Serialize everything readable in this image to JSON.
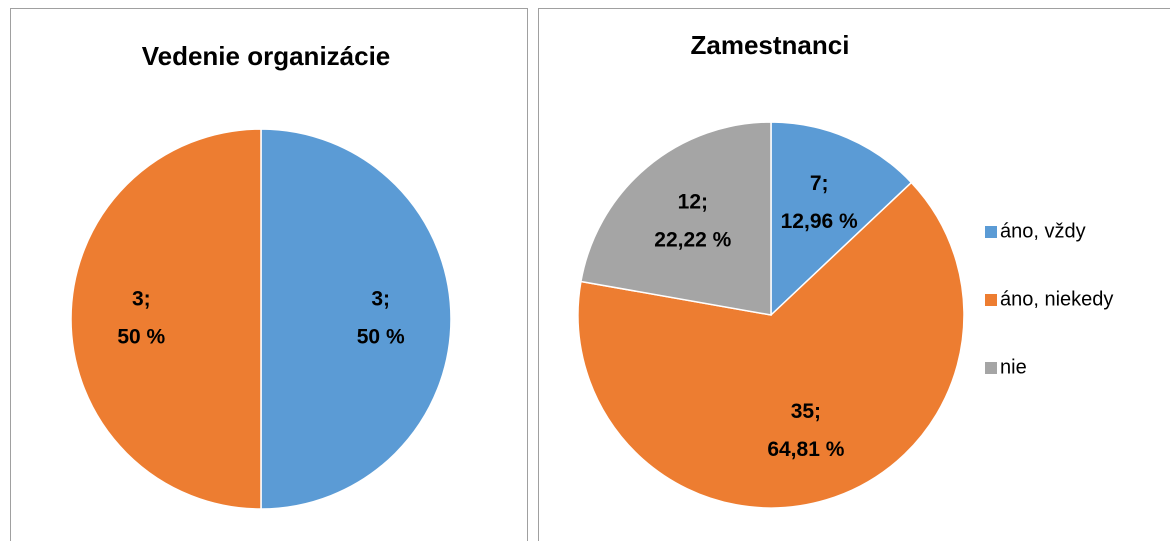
{
  "chart_data": [
    {
      "type": "pie",
      "title": "Vedenie organizácie",
      "values": [
        3,
        3
      ],
      "value_labels": [
        [
          "3;",
          "50 %"
        ],
        [
          "3;",
          "50 %"
        ]
      ],
      "colors": [
        "#5b9bd5",
        "#ed7d31"
      ]
    },
    {
      "type": "pie",
      "title": "Zamestnanci",
      "categories": [
        "áno, vždy",
        "áno, niekedy",
        "nie"
      ],
      "values": [
        7,
        35,
        12
      ],
      "value_labels": [
        [
          "7;",
          "12,96 %"
        ],
        [
          "35;",
          "64,81 %"
        ],
        [
          "12;",
          "22,22 %"
        ]
      ],
      "colors": [
        "#5b9bd5",
        "#ed7d31",
        "#a5a5a5"
      ],
      "legend": "right"
    }
  ]
}
